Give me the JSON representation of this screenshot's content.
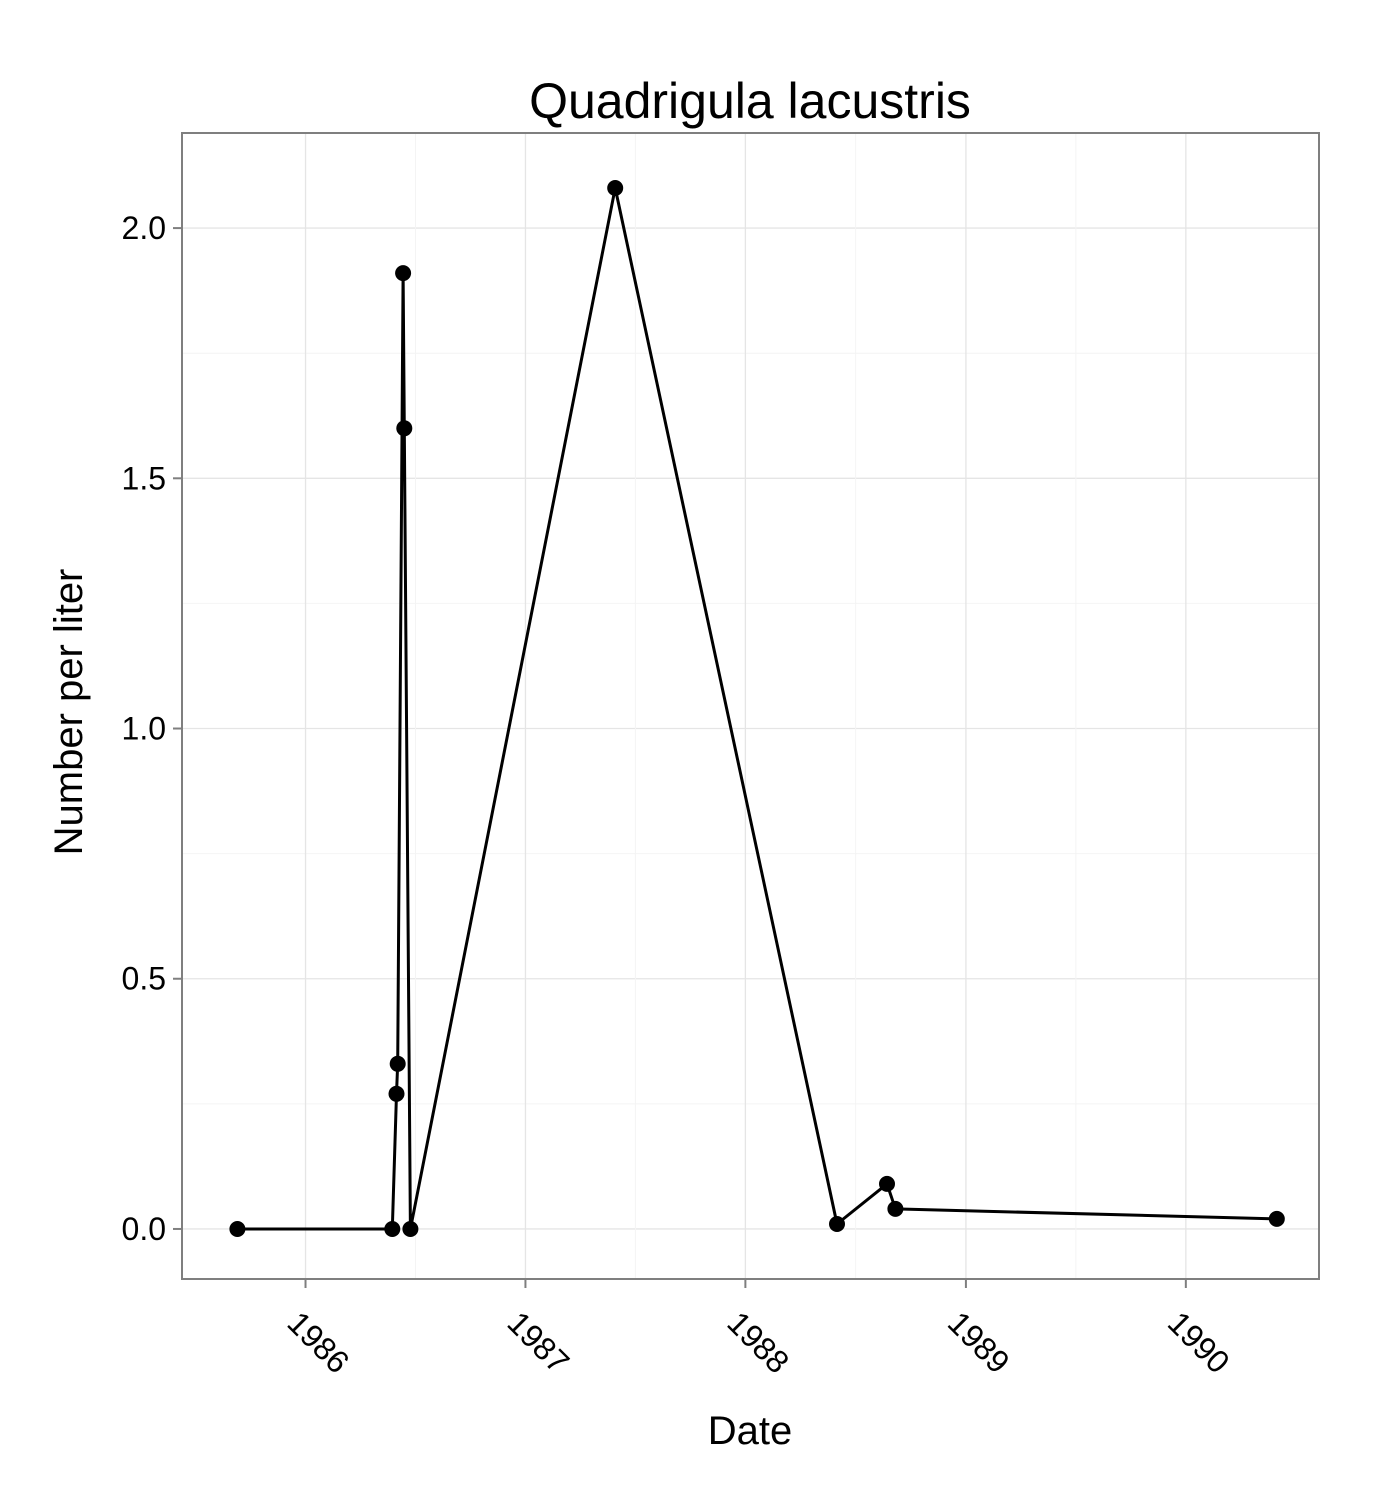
{
  "chart_data": {
    "type": "line",
    "title": "Quadrigula lacustris",
    "xlabel": "Date",
    "ylabel": "Number per liter",
    "x_ticks": [
      "1986",
      "1987",
      "1988",
      "1989",
      "1990"
    ],
    "y_ticks": [
      "0.0",
      "0.5",
      "1.0",
      "1.5",
      "2.0"
    ],
    "xlim": [
      "1985-06-10",
      "1990-08-10"
    ],
    "ylim": [
      -0.1,
      2.19
    ],
    "grid": true,
    "markers": true,
    "series": [
      {
        "points": [
          {
            "x": "1985-09-10",
            "y": 0.0
          },
          {
            "x": "1986-05-25",
            "y": 0.0
          },
          {
            "x": "1986-06-01",
            "y": 0.27
          },
          {
            "x": "1986-06-03",
            "y": 0.33
          },
          {
            "x": "1986-06-12",
            "y": 1.91
          },
          {
            "x": "1986-06-14",
            "y": 1.6
          },
          {
            "x": "1986-06-24",
            "y": 0.0
          },
          {
            "x": "1987-05-30",
            "y": 2.08
          },
          {
            "x": "1988-06-01",
            "y": 0.01
          },
          {
            "x": "1988-08-23",
            "y": 0.09
          },
          {
            "x": "1988-09-06",
            "y": 0.04
          },
          {
            "x": "1990-06-01",
            "y": 0.02
          }
        ]
      }
    ]
  }
}
